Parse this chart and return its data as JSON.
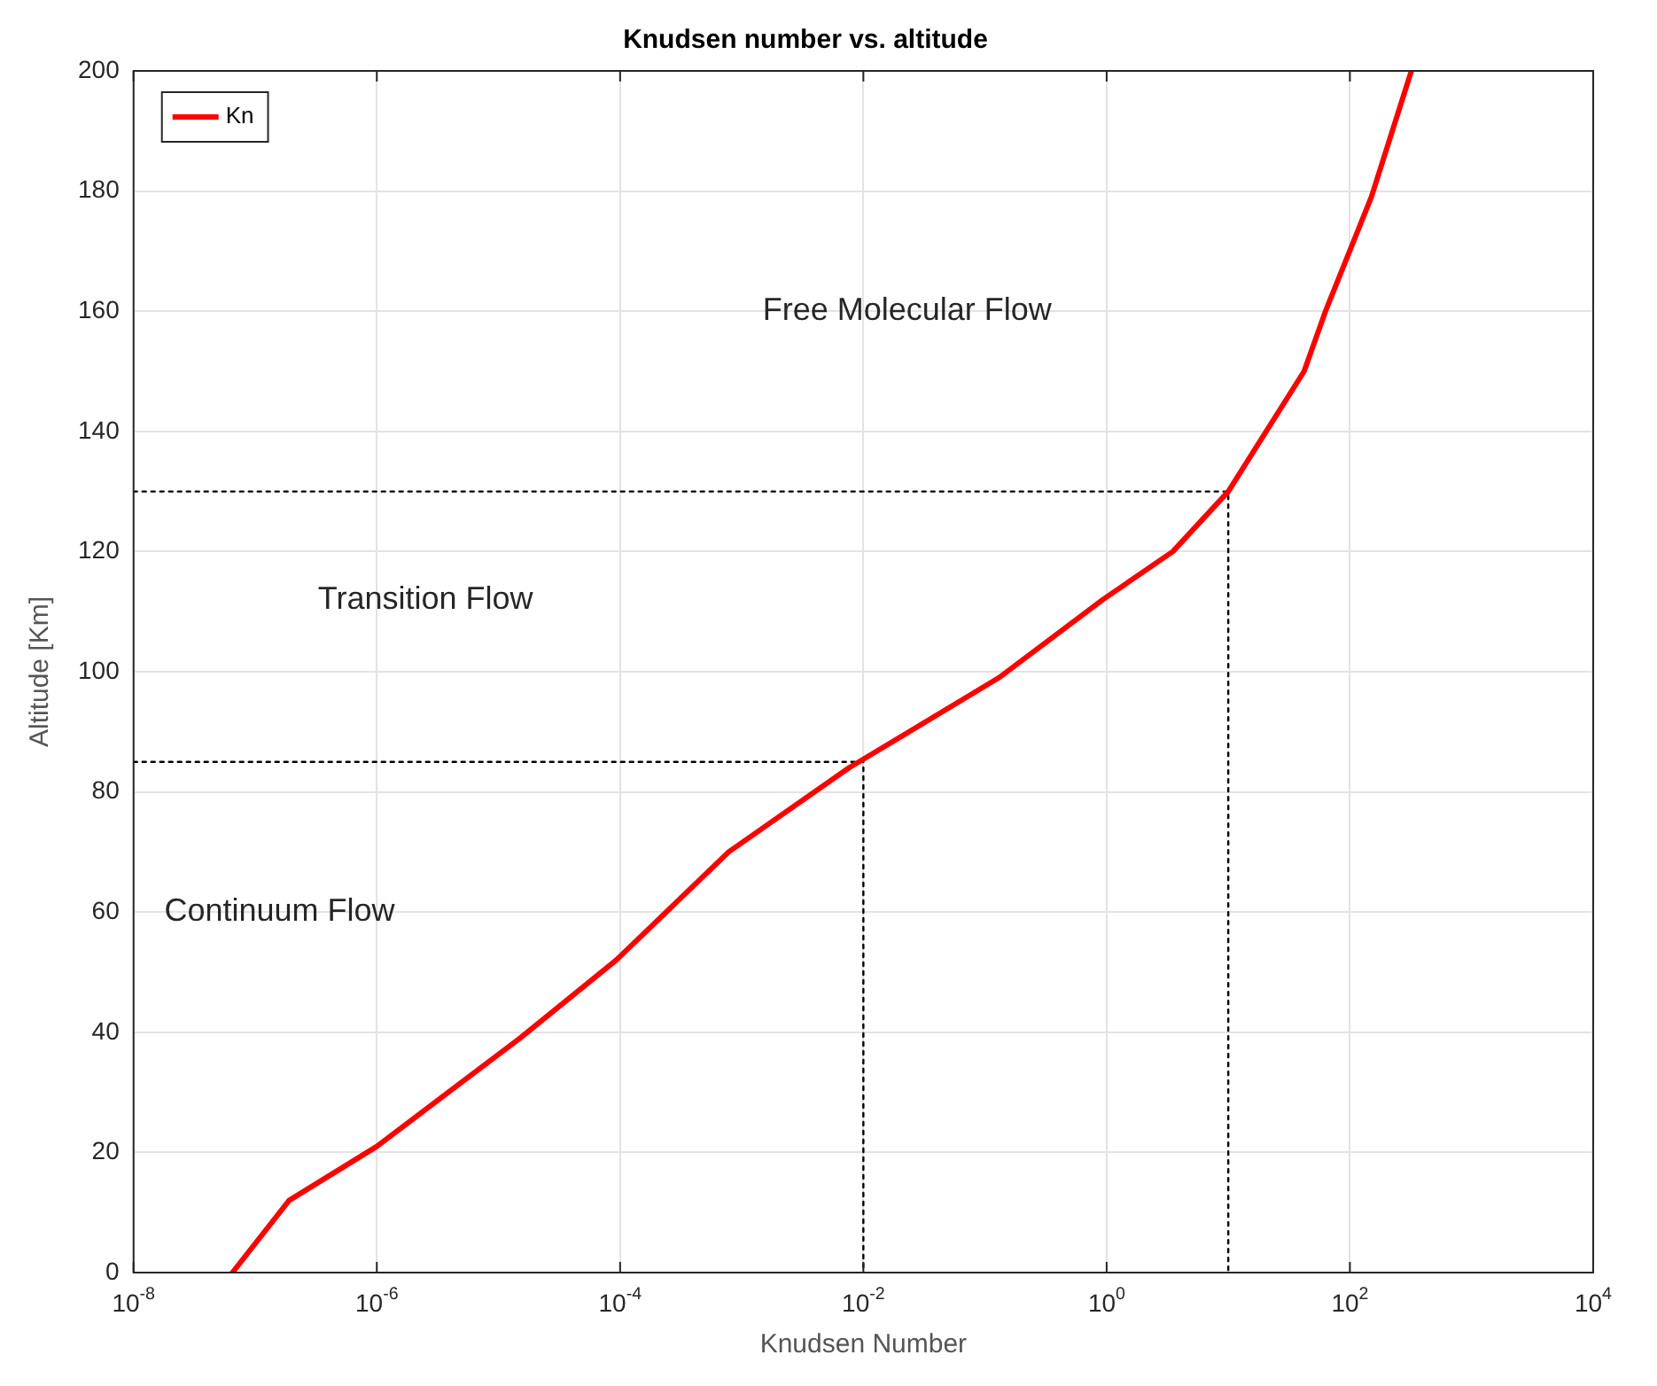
{
  "chart_data": {
    "type": "line",
    "title": "Knudsen number vs. altitude",
    "xlabel": "Knudsen Number",
    "ylabel": "Altitude [Km]",
    "log": "x",
    "grid": true,
    "legend": "top left",
    "xlim": [
      1e-08,
      10000
    ],
    "xticks": [
      {
        "value": 1e-08,
        "label": "10$^{-8}$"
      },
      {
        "value": 1e-06,
        "label": "10$^{-6}$"
      },
      {
        "value": 0.0001,
        "label": "10$^{-4}$"
      },
      {
        "value": 0.01,
        "label": "10$^{-2}$"
      },
      {
        "value": 1,
        "label": "10$^{0}$"
      },
      {
        "value": 100,
        "label": "10$^{2}$"
      },
      {
        "value": 10000,
        "label": "10$^{4}$"
      }
    ],
    "ylim": [
      0,
      200
    ],
    "yticks": [
      0,
      20,
      40,
      60,
      80,
      100,
      120,
      140,
      160,
      180,
      200
    ],
    "series": [
      {
        "name": "Kn",
        "color": "#ff0000",
        "x": [
          6.5e-08,
          1.9e-07,
          1e-06,
          1.5e-05,
          9.3e-05,
          0.00078,
          0.0076,
          0.13,
          0.93,
          3.5,
          10,
          42,
          63,
          150,
          320
        ],
        "values": [
          0,
          12,
          21,
          39,
          52,
          70,
          84,
          99,
          112,
          120,
          130,
          150,
          160,
          179,
          200
        ]
      },
      {
        "color": "#000000",
        "line_style": "dotted",
        "x": [
          1e-08,
          0.01,
          0.01
        ],
        "values": [
          85,
          85,
          0
        ]
      },
      {
        "color": "#000000",
        "line_style": "dotted",
        "x": [
          1e-08,
          10,
          10
        ],
        "values": [
          130,
          130,
          0
        ]
      }
    ],
    "annotations": [
      "Free Molecular Flow",
      "Transition Flow",
      "Continuum Flow"
    ]
  }
}
